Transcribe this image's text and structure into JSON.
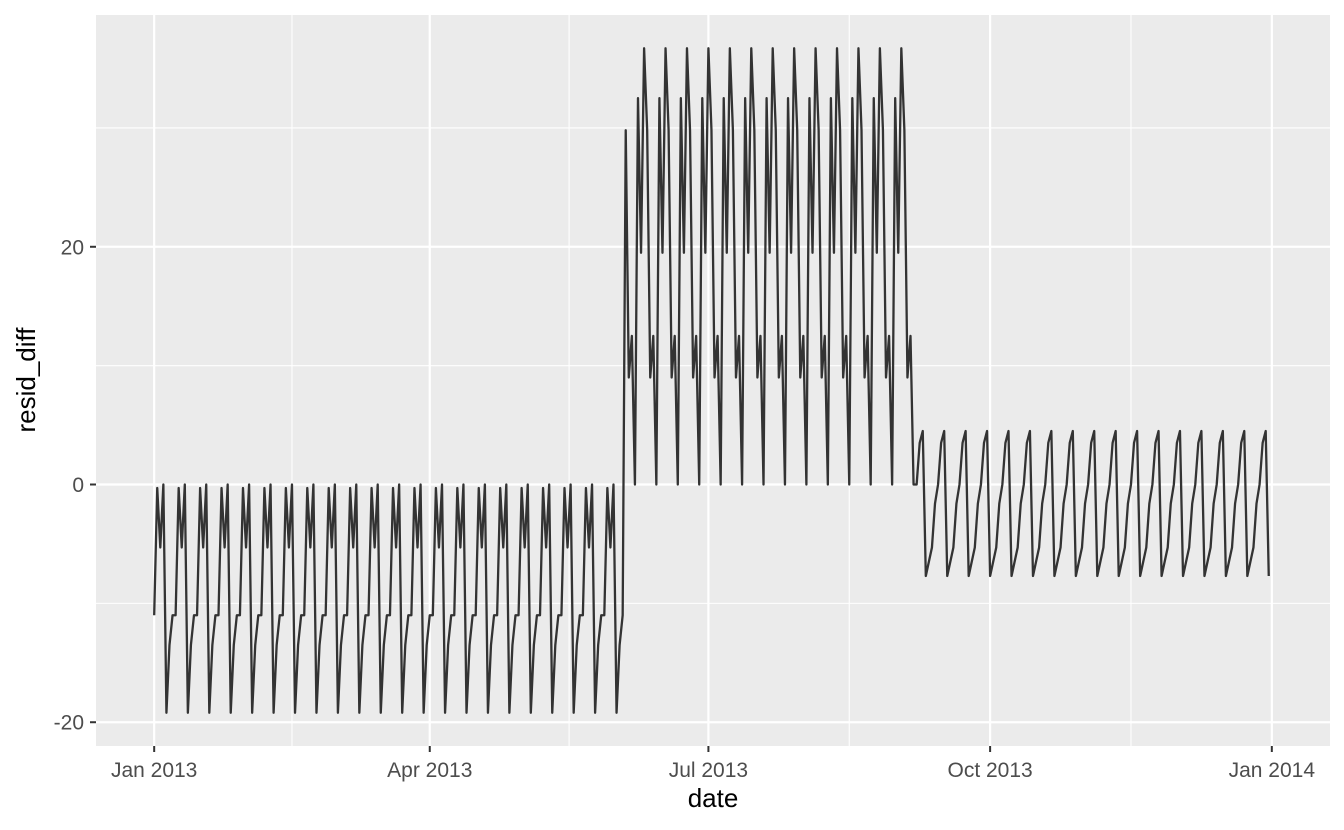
{
  "chart_data": {
    "type": "line",
    "xlabel": "date",
    "ylabel": "resid_diff",
    "xlim": [
      "2012-12-13",
      "2014-01-20"
    ],
    "ylim": [
      -22.0,
      39.5
    ],
    "x_ticks": [
      {
        "date": "2013-01-01",
        "label": "Jan 2013"
      },
      {
        "date": "2013-04-01",
        "label": "Apr 2013"
      },
      {
        "date": "2013-07-01",
        "label": "Jul 2013"
      },
      {
        "date": "2013-10-01",
        "label": "Oct 2013"
      },
      {
        "date": "2014-01-01",
        "label": "Jan 2014"
      }
    ],
    "y_ticks": [
      {
        "value": -20,
        "label": "-20"
      },
      {
        "value": 0,
        "label": "0"
      },
      {
        "value": 20,
        "label": "20"
      }
    ],
    "grid": true,
    "line_color": "#333333",
    "panel_background": "#ebebeb",
    "grid_color": "#ffffff",
    "series": [
      {
        "x_start": "2013-01-01",
        "x_end": "2013-12-31",
        "step": "1 day",
        "weekly_cycles": [
          {
            "from": "2013-01-01",
            "to": "2013-06-03",
            "values": [
              -11.0,
              -0.3,
              -5.3,
              0.0,
              -19.2,
              -13.5,
              -11.0
            ]
          },
          {
            "from": "2013-06-04",
            "to": "2013-09-06",
            "values": [
              29.8,
              9.0,
              12.5,
              0.0,
              32.5,
              19.5,
              36.7
            ]
          },
          {
            "from": "2013-09-07",
            "to": "2013-12-31",
            "values": [
              0.0,
              3.5,
              4.5,
              -7.7,
              -6.5,
              -5.3,
              -1.6
            ]
          }
        ]
      }
    ]
  }
}
